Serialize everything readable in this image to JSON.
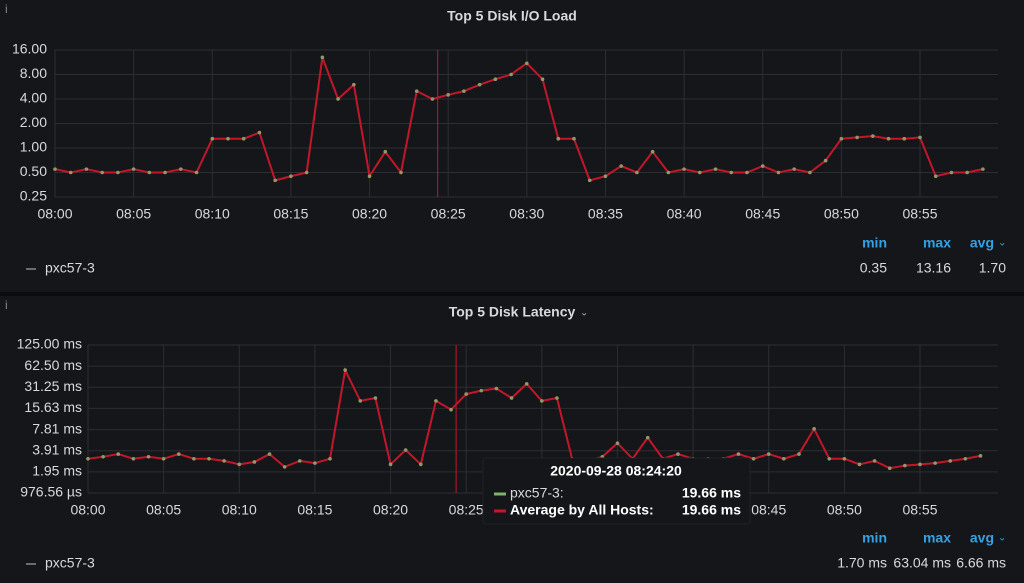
{
  "chart_data": [
    {
      "type": "line",
      "title": "Top 5 Disk I/O Load",
      "log_scale": true,
      "grid": true,
      "x": [
        "08:00",
        "08:01",
        "08:02",
        "08:03",
        "08:04",
        "08:05",
        "08:06",
        "08:07",
        "08:08",
        "08:09",
        "08:10",
        "08:11",
        "08:12",
        "08:13",
        "08:14",
        "08:15",
        "08:16",
        "08:17",
        "08:18",
        "08:19",
        "08:20",
        "08:21",
        "08:22",
        "08:23",
        "08:24",
        "08:25",
        "08:26",
        "08:27",
        "08:28",
        "08:29",
        "08:30",
        "08:31",
        "08:32",
        "08:33",
        "08:34",
        "08:35",
        "08:36",
        "08:37",
        "08:38",
        "08:39",
        "08:40",
        "08:41",
        "08:42",
        "08:43",
        "08:44",
        "08:45",
        "08:46",
        "08:47",
        "08:48",
        "08:49",
        "08:50",
        "08:51",
        "08:52",
        "08:53",
        "08:54",
        "08:55",
        "08:56",
        "08:57",
        "08:58",
        "08:59"
      ],
      "xlim": [
        "08:00",
        "08:59"
      ],
      "xticks": [
        "08:00",
        "08:05",
        "08:10",
        "08:15",
        "08:20",
        "08:25",
        "08:30",
        "08:35",
        "08:40",
        "08:45",
        "08:50",
        "08:55"
      ],
      "ylim": [
        0.25,
        16
      ],
      "yticks": [
        0.25,
        {
          "value": 0.5,
          "label": "0.50"
        },
        {
          "value": 1,
          "label": "1.00"
        },
        {
          "value": 2,
          "label": "2.00"
        },
        {
          "value": 4,
          "label": "4.00"
        },
        {
          "value": 8,
          "label": "8.00"
        },
        {
          "value": 16,
          "label": "16.00"
        }
      ],
      "series": [
        {
          "name": "pxc57-3",
          "color": "#c4162a",
          "values": [
            0.55,
            0.5,
            0.55,
            0.5,
            0.5,
            0.55,
            0.5,
            0.5,
            0.55,
            0.5,
            1.3,
            1.3,
            1.3,
            1.55,
            0.4,
            0.45,
            0.5,
            13,
            4,
            6,
            0.45,
            0.9,
            0.5,
            5,
            4,
            4.5,
            5,
            6,
            7,
            8,
            11,
            7,
            1.3,
            1.3,
            0.4,
            0.45,
            0.6,
            0.5,
            0.9,
            0.5,
            0.55,
            0.5,
            0.55,
            0.5,
            0.5,
            0.6,
            0.5,
            0.55,
            0.5,
            0.7,
            1.3,
            1.35,
            1.4,
            1.3,
            1.3,
            1.35,
            0.45,
            0.5,
            0.5,
            0.55
          ]
        }
      ],
      "legend_stats": [
        {
          "header": "min",
          "value": "0.35"
        },
        {
          "header": "max",
          "value": "13.16"
        },
        {
          "header": "avg",
          "value": "1.70"
        }
      ]
    },
    {
      "type": "line",
      "title": "Top 5 Disk Latency",
      "log_scale": true,
      "grid": true,
      "x": [
        "08:00",
        "08:01",
        "08:02",
        "08:03",
        "08:04",
        "08:05",
        "08:06",
        "08:07",
        "08:08",
        "08:09",
        "08:10",
        "08:11",
        "08:12",
        "08:13",
        "08:14",
        "08:15",
        "08:16",
        "08:17",
        "08:18",
        "08:19",
        "08:20",
        "08:21",
        "08:22",
        "08:23",
        "08:24",
        "08:25",
        "08:26",
        "08:27",
        "08:28",
        "08:29",
        "08:30",
        "08:31",
        "08:32",
        "08:33",
        "08:34",
        "08:35",
        "08:36",
        "08:37",
        "08:38",
        "08:39",
        "08:40",
        "08:41",
        "08:42",
        "08:43",
        "08:44",
        "08:45",
        "08:46",
        "08:47",
        "08:48",
        "08:49",
        "08:50",
        "08:51",
        "08:52",
        "08:53",
        "08:54",
        "08:55",
        "08:56",
        "08:57",
        "08:58",
        "08:59"
      ],
      "xlim": [
        "08:00",
        "08:59"
      ],
      "xticks": [
        "08:00",
        "08:05",
        "08:10",
        "08:15",
        "08:20",
        "08:25",
        "08:30",
        "08:35",
        "08:40",
        "08:45",
        "08:50",
        "08:55"
      ],
      "ylim": [
        0.9765625,
        125
      ],
      "yticks": [
        {
          "value": 0.9765625,
          "label": "976.56 µs"
        },
        {
          "value": 1.953125,
          "label": "1.95 ms"
        },
        {
          "value": 3.90625,
          "label": "3.91 ms"
        },
        {
          "value": 7.8125,
          "label": "7.81 ms"
        },
        {
          "value": 15.625,
          "label": "15.63 ms"
        },
        {
          "value": 31.25,
          "label": "31.25 ms"
        },
        {
          "value": 62.5,
          "label": "62.50 ms"
        },
        {
          "value": 125,
          "label": "125.00 ms"
        }
      ],
      "series": [
        {
          "name": "pxc57-3",
          "color": "#c4162a",
          "values": [
            3,
            3.2,
            3.5,
            3,
            3.2,
            3,
            3.5,
            3,
            3,
            2.8,
            2.5,
            2.7,
            3.5,
            2.3,
            2.8,
            2.6,
            3,
            55,
            20,
            22,
            2.5,
            4,
            2.5,
            20,
            15,
            25,
            28,
            30,
            22,
            35,
            20,
            22,
            3,
            2.8,
            3.2,
            5,
            3,
            6,
            3,
            3.5,
            3,
            3,
            3,
            3.5,
            3,
            3.5,
            3,
            3.5,
            8,
            3,
            3,
            2.5,
            2.8,
            2.2,
            2.4,
            2.5,
            2.6,
            2.8,
            3,
            3.3
          ]
        }
      ],
      "legend_stats": [
        {
          "header": "min",
          "value": "1.70 ms"
        },
        {
          "header": "max",
          "value": "63.04 ms"
        },
        {
          "header": "avg",
          "value": "6.66 ms"
        }
      ],
      "tooltip": {
        "time": "2020-09-28 08:24:20",
        "items": [
          {
            "name": "pxc57-3:",
            "color": "#7eb26d",
            "value": 19.66,
            "label": "19.66 ms"
          },
          {
            "name": "Average by All Hosts:",
            "color": "#c4162a",
            "value": 19.66,
            "label": "19.66 ms"
          }
        ]
      }
    }
  ]
}
